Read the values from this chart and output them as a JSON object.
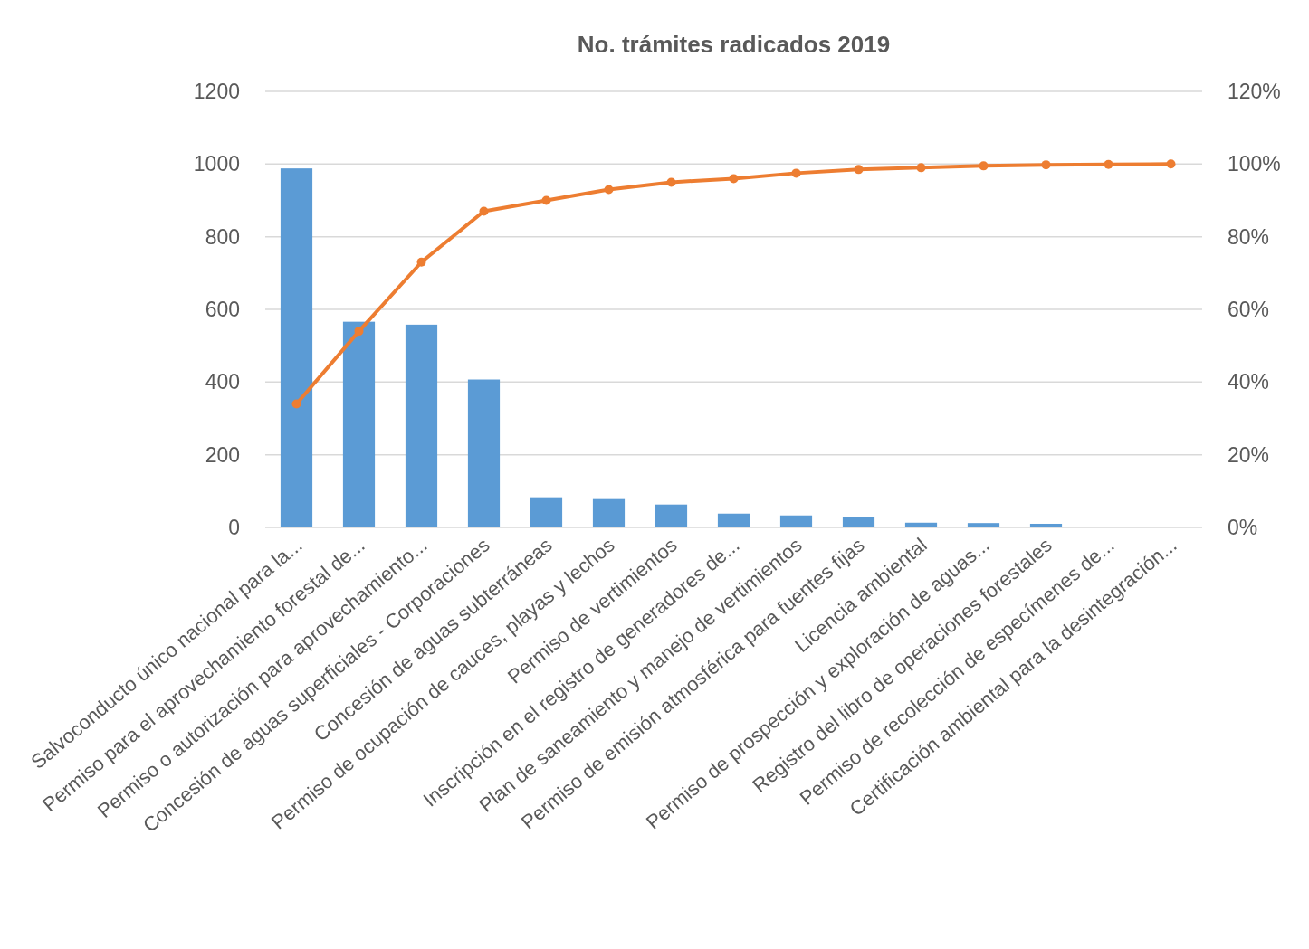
{
  "chart_data": {
    "type": "bar",
    "title": "No. trámites radicados 2019",
    "categories": [
      "Salvoconducto único nacional para la...",
      "Permiso para el aprovechamiento forestal de...",
      "Permiso o autorización para aprovechamiento...",
      "Concesión de aguas superficiales - Corporaciones",
      "Concesión de aguas subterráneas",
      "Permiso de ocupación de cauces, playas y lechos",
      "Permiso de vertimientos",
      "Inscripción en el registro de generadores de...",
      "Plan de saneamiento y manejo de vertimientos",
      "Permiso de emisión atmosférica para fuentes fijas",
      "Licencia ambiental",
      "Permiso de prospección y exploración de aguas...",
      "Registro del libro de operaciones forestales",
      "Permiso de recolección de especímenes de...",
      "Certificación ambiental para la desintegración..."
    ],
    "series": [
      {
        "color": "#5b9bd5",
        "values": [
          988,
          566,
          558,
          407,
          83,
          78,
          63,
          38,
          33,
          28,
          13,
          12,
          10,
          null,
          null
        ]
      },
      {
        "type": "line",
        "axis": "y2",
        "color": "#ed7d31",
        "marker": "circle",
        "values": [
          34,
          54,
          73,
          87,
          90,
          93,
          95,
          96,
          97.5,
          98.5,
          99,
          99.5,
          99.8,
          99.9,
          100
        ]
      }
    ],
    "ylim": [
      0,
      1200
    ],
    "yticks": [
      0,
      200,
      400,
      600,
      800,
      1000,
      1200
    ],
    "y2lim": [
      0,
      120
    ],
    "y2ticks": [
      {
        "value": 0,
        "label": "0%"
      },
      {
        "value": 20,
        "label": "20%"
      },
      {
        "value": 40,
        "label": "40%"
      },
      {
        "value": 60,
        "label": "60%"
      },
      {
        "value": 80,
        "label": "80%"
      },
      {
        "value": 100,
        "label": "100%"
      },
      {
        "value": 120,
        "label": "120%"
      }
    ],
    "grid": "y"
  }
}
